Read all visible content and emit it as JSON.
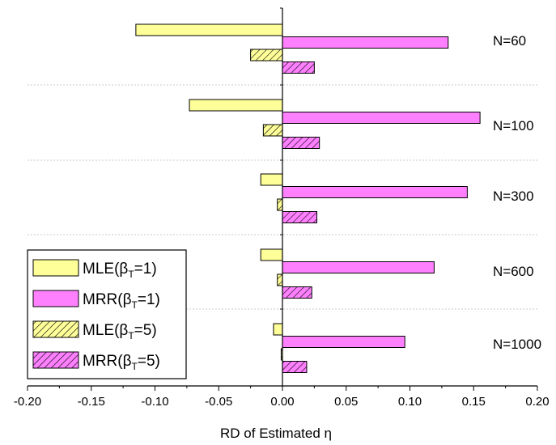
{
  "chart_data": {
    "type": "bar",
    "orientation": "horizontal",
    "categories": [
      "N=60",
      "N=100",
      "N=300",
      "N=600",
      "N=1000"
    ],
    "series": [
      {
        "name": "MLE(βT=1)",
        "name_main": "MLE(β",
        "name_sub": "T",
        "name_tail": "=1)",
        "color": "#ffff99",
        "hatch": false,
        "values": [
          -0.115,
          -0.073,
          -0.017,
          -0.017,
          -0.007
        ]
      },
      {
        "name": "MRR(βT=1)",
        "name_main": "MRR(β",
        "name_sub": "T",
        "name_tail": "=1)",
        "color": "#ff80ff",
        "hatch": false,
        "values": [
          0.13,
          0.155,
          0.145,
          0.119,
          0.096
        ]
      },
      {
        "name": "MLE(βT=5)",
        "name_main": "MLE(β",
        "name_sub": "T",
        "name_tail": "=5)",
        "color": "#ffff99",
        "hatch": true,
        "values": [
          -0.025,
          -0.015,
          -0.004,
          -0.004,
          -0.001
        ]
      },
      {
        "name": "MRR(βT=5)",
        "name_main": "MRR(β",
        "name_sub": "T",
        "name_tail": "=5)",
        "color": "#ff80ff",
        "hatch": true,
        "values": [
          0.025,
          0.029,
          0.027,
          0.023,
          0.019
        ]
      }
    ],
    "xlim": [
      -0.2,
      0.2
    ],
    "xticks": [
      "-0.20",
      "-0.15",
      "-0.10",
      "-0.05",
      "0.00",
      "0.05",
      "0.10",
      "0.15",
      "0.20"
    ],
    "xlabel": "RD of Estimated η",
    "title": "",
    "ylabel": "",
    "legend_position": "bottom-left",
    "grid": "dotted horizontal separators between groups"
  }
}
